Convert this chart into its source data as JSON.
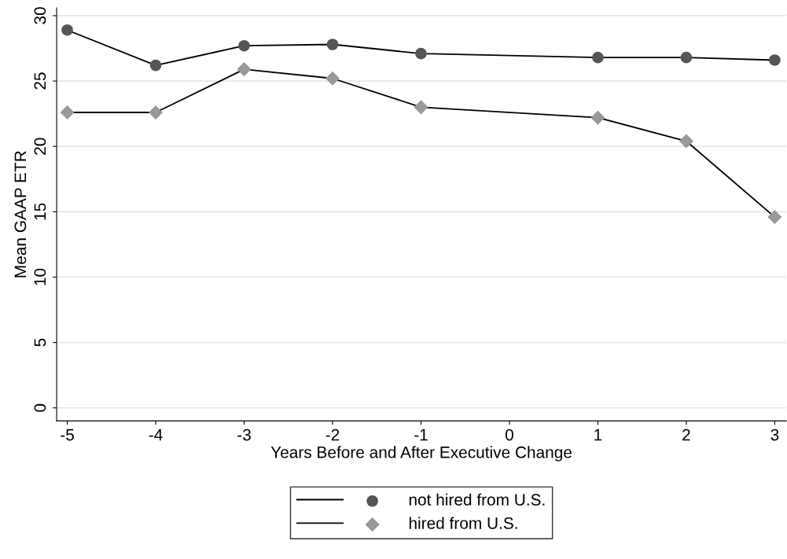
{
  "chart_data": {
    "type": "line",
    "xlabel": "Years Before and After Executive Change",
    "ylabel": "Mean GAAP ETR",
    "x": [
      -5,
      -4,
      -3,
      -2,
      -1,
      1,
      2,
      3
    ],
    "series": [
      {
        "name": "not hired from U.S.",
        "color": "#555555",
        "marker": "circle",
        "values": [
          28.9,
          26.2,
          27.7,
          27.8,
          27.1,
          26.8,
          26.8,
          26.6
        ]
      },
      {
        "name": "hired from U.S.",
        "color": "#999999",
        "marker": "diamond",
        "values": [
          22.6,
          22.6,
          25.9,
          25.2,
          23.0,
          22.2,
          20.4,
          14.6
        ]
      }
    ],
    "xlim": [
      -5.12,
      3.13
    ],
    "xticks": [
      -5,
      -4,
      -3,
      -2,
      -1,
      0,
      1,
      2,
      3
    ],
    "ylim": [
      -1,
      30.6
    ],
    "yticks": [
      0,
      5,
      10,
      15,
      20,
      25,
      30
    ],
    "grid": "y",
    "legend": "bottom",
    "line_style": "solid"
  }
}
